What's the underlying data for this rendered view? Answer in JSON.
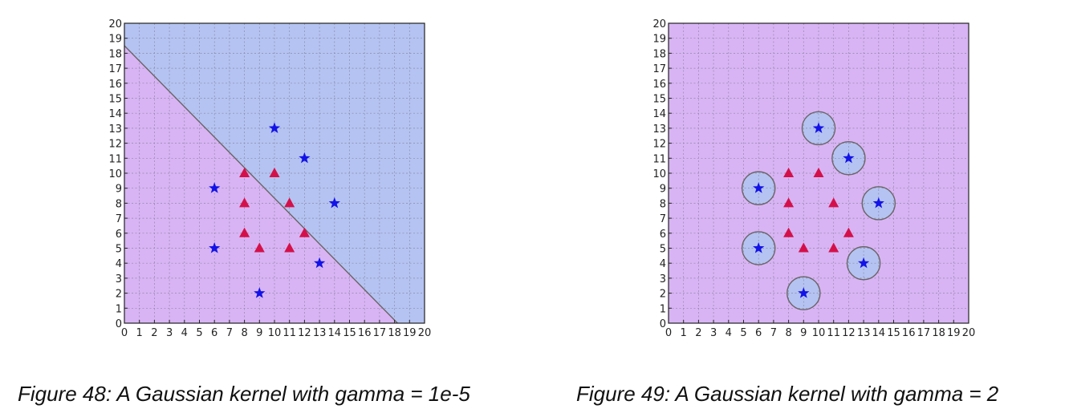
{
  "chart_data": [
    {
      "type": "scatter",
      "caption": "Figure 48: A Gaussian kernel with gamma = 1e-5",
      "xlim": [
        0,
        20
      ],
      "ylim": [
        0,
        20
      ],
      "x_ticks": [
        "0",
        "1",
        "2",
        "3",
        "4",
        "5",
        "6",
        "7",
        "8",
        "9",
        "10",
        "11",
        "12",
        "13",
        "14",
        "15",
        "16",
        "17",
        "18",
        "19",
        "20"
      ],
      "y_ticks": [
        "0",
        "1",
        "2",
        "3",
        "4",
        "5",
        "6",
        "7",
        "8",
        "9",
        "10",
        "11",
        "12",
        "13",
        "14",
        "15",
        "16",
        "17",
        "18",
        "19",
        "20"
      ],
      "grid": true,
      "background_color": "#d8b4f4",
      "region_color": "#b5c3f2",
      "boundary": {
        "kind": "line",
        "from": [
          0,
          18.5
        ],
        "to": [
          18.2,
          0
        ]
      },
      "series": [
        {
          "marker": "star",
          "color": "#1313e6",
          "points": [
            [
              6,
              9
            ],
            [
              6,
              5
            ],
            [
              9,
              2
            ],
            [
              10,
              13
            ],
            [
              12,
              11
            ],
            [
              13,
              4
            ],
            [
              14,
              8
            ]
          ]
        },
        {
          "marker": "triangle",
          "color": "#d4104a",
          "points": [
            [
              8,
              10
            ],
            [
              10,
              10
            ],
            [
              8,
              8
            ],
            [
              11,
              8
            ],
            [
              8,
              6
            ],
            [
              12,
              6
            ],
            [
              9,
              5
            ],
            [
              11,
              5
            ]
          ]
        }
      ]
    },
    {
      "type": "scatter",
      "caption": "Figure 49: A Gaussian kernel with gamma = 2",
      "xlim": [
        0,
        20
      ],
      "ylim": [
        0,
        20
      ],
      "x_ticks": [
        "0",
        "1",
        "2",
        "3",
        "4",
        "5",
        "6",
        "7",
        "8",
        "9",
        "10",
        "11",
        "12",
        "13",
        "14",
        "15",
        "16",
        "17",
        "18",
        "19",
        "20"
      ],
      "y_ticks": [
        "0",
        "1",
        "2",
        "3",
        "4",
        "5",
        "6",
        "7",
        "8",
        "9",
        "10",
        "11",
        "12",
        "13",
        "14",
        "15",
        "16",
        "17",
        "18",
        "19",
        "20"
      ],
      "grid": true,
      "background_color": "#d8b4f4",
      "region_color": "#b5c3f2",
      "boundary": {
        "kind": "circles",
        "radius": 1.1
      },
      "series": [
        {
          "marker": "star",
          "color": "#1313e6",
          "points": [
            [
              6,
              9
            ],
            [
              6,
              5
            ],
            [
              9,
              2
            ],
            [
              10,
              13
            ],
            [
              12,
              11
            ],
            [
              13,
              4
            ],
            [
              14,
              8
            ]
          ]
        },
        {
          "marker": "triangle",
          "color": "#d4104a",
          "points": [
            [
              8,
              10
            ],
            [
              10,
              10
            ],
            [
              8,
              8
            ],
            [
              11,
              8
            ],
            [
              8,
              6
            ],
            [
              12,
              6
            ],
            [
              9,
              5
            ],
            [
              11,
              5
            ]
          ]
        }
      ]
    }
  ]
}
